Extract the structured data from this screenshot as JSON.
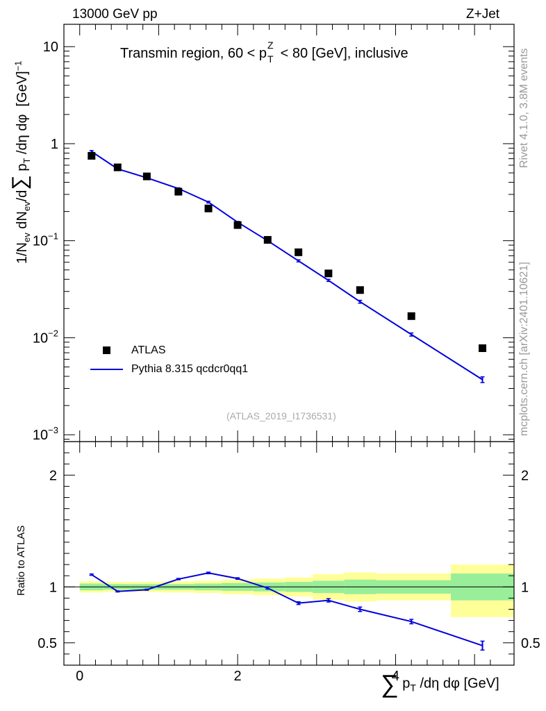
{
  "header": {
    "left": "13000 GeV pp",
    "right": "Z+Jet"
  },
  "side_labels": {
    "rivet": "Rivet 4.1.0,  3.8M events",
    "mcplots": "mcplots.cern.ch [arXiv:2401.10621]"
  },
  "colors": {
    "data": "#000000",
    "mc": "#0000dd",
    "band_inner": "#99ee99",
    "band_outer": "#ffff99"
  },
  "chart_data": [
    {
      "type": "line",
      "title": "Transmin region, 60 < p_T^Z < 80 [GeV], inclusive",
      "title_parts": {
        "pre": "Transmin region, 60 < p",
        "sup": "Z",
        "sub": "T",
        "post": " < 80 [GeV], inclusive"
      },
      "ylabel": "1/N_ev dN_ev/d∑ p_T /dη dφ [GeV]^-1",
      "yscale": "log",
      "ylim": [
        0.00085,
        17
      ],
      "xlim": [
        -0.2,
        5.5
      ],
      "yticks": [
        {
          "value": 10,
          "label": "10"
        },
        {
          "value": 1,
          "label": "1"
        },
        {
          "value": 0.1,
          "label": "10",
          "exp": "−1"
        },
        {
          "value": 0.01,
          "label": "10",
          "exp": "−2"
        },
        {
          "value": 0.001,
          "label": "10",
          "exp": "−3"
        }
      ],
      "annotation": "(ATLAS_2019_I1736531)",
      "legend": {
        "placement": "bottom-left",
        "entries": [
          "ATLAS",
          "Pythia 8.315 qcdcr0qq1"
        ]
      },
      "series": [
        {
          "name": "ATLAS",
          "style": "marker",
          "x": [
            0.15,
            0.48,
            0.85,
            1.25,
            1.63,
            2.0,
            2.38,
            2.77,
            3.15,
            3.55,
            4.2,
            5.1
          ],
          "values": [
            0.75,
            0.57,
            0.46,
            0.32,
            0.215,
            0.145,
            0.102,
            0.076,
            0.046,
            0.031,
            0.0167,
            0.0078
          ]
        },
        {
          "name": "Pythia 8.315 qcdcr0qq1",
          "style": "line",
          "x": [
            0.15,
            0.48,
            0.85,
            1.25,
            1.63,
            2.0,
            2.38,
            2.77,
            3.15,
            3.55,
            4.2,
            5.1
          ],
          "values": [
            0.83,
            0.55,
            0.445,
            0.345,
            0.25,
            0.155,
            0.1,
            0.062,
            0.039,
            0.0235,
            0.0108,
            0.0037
          ],
          "err": [
            0.02,
            0.01,
            0.008,
            0.006,
            0.005,
            0.003,
            0.002,
            0.0015,
            0.001,
            0.0008,
            0.0004,
            0.00025
          ]
        }
      ]
    },
    {
      "type": "line",
      "title": "",
      "ylabel": "Ratio to ATLAS",
      "xlabel": "∑ p_T /dη dφ [GeV]",
      "xlim": [
        -0.2,
        5.5
      ],
      "ylim": [
        0.3,
        2.3
      ],
      "yticks": [
        0.5,
        1,
        2
      ],
      "xticks": [
        0,
        2,
        4
      ],
      "reference": 1,
      "bands": [
        {
          "x0": 0.0,
          "x1": 0.3,
          "inner": [
            0.97,
            1.03
          ],
          "outer": [
            0.95,
            1.05
          ]
        },
        {
          "x0": 0.3,
          "x1": 0.65,
          "inner": [
            0.975,
            1.025
          ],
          "outer": [
            0.955,
            1.045
          ]
        },
        {
          "x0": 0.65,
          "x1": 1.05,
          "inner": [
            0.975,
            1.025
          ],
          "outer": [
            0.955,
            1.045
          ]
        },
        {
          "x0": 1.05,
          "x1": 1.45,
          "inner": [
            0.975,
            1.025
          ],
          "outer": [
            0.95,
            1.05
          ]
        },
        {
          "x0": 1.45,
          "x1": 1.8,
          "inner": [
            0.97,
            1.03
          ],
          "outer": [
            0.945,
            1.055
          ]
        },
        {
          "x0": 1.8,
          "x1": 2.2,
          "inner": [
            0.965,
            1.035
          ],
          "outer": [
            0.935,
            1.065
          ]
        },
        {
          "x0": 2.2,
          "x1": 2.6,
          "inner": [
            0.96,
            1.04
          ],
          "outer": [
            0.925,
            1.075
          ]
        },
        {
          "x0": 2.6,
          "x1": 2.95,
          "inner": [
            0.955,
            1.045
          ],
          "outer": [
            0.915,
            1.085
          ]
        },
        {
          "x0": 2.95,
          "x1": 3.35,
          "inner": [
            0.945,
            1.055
          ],
          "outer": [
            0.885,
            1.115
          ]
        },
        {
          "x0": 3.35,
          "x1": 3.75,
          "inner": [
            0.935,
            1.065
          ],
          "outer": [
            0.87,
            1.13
          ]
        },
        {
          "x0": 3.75,
          "x1": 4.7,
          "inner": [
            0.94,
            1.06
          ],
          "outer": [
            0.88,
            1.12
          ]
        },
        {
          "x0": 4.7,
          "x1": 5.5,
          "inner": [
            0.88,
            1.12
          ],
          "outer": [
            0.73,
            1.2
          ]
        }
      ],
      "series": [
        {
          "name": "Pythia 8.315 qcdcr0qq1 / ATLAS",
          "x": [
            0.15,
            0.48,
            0.85,
            1.25,
            1.63,
            2.0,
            2.38,
            2.77,
            3.15,
            3.55,
            4.2,
            5.1
          ],
          "values": [
            1.11,
            0.96,
            0.975,
            1.07,
            1.125,
            1.075,
            0.99,
            0.855,
            0.88,
            0.8,
            0.69,
            0.475
          ],
          "err": [
            0.006,
            0.005,
            0.005,
            0.006,
            0.007,
            0.007,
            0.01,
            0.012,
            0.015,
            0.02,
            0.02,
            0.04
          ]
        }
      ]
    }
  ]
}
